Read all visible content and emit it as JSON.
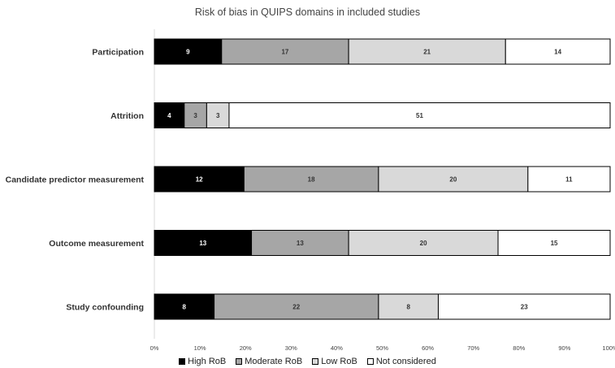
{
  "chart_data": {
    "type": "bar",
    "orientation": "horizontal",
    "stacked": true,
    "percent_scale": true,
    "title": "Risk of bias in QUIPS domains in included studies",
    "categories": [
      "Participation",
      "Attrition",
      "Candidate predictor measurement",
      "Outcome measurement",
      "Study confounding"
    ],
    "series": [
      {
        "name": "High RoB",
        "values": [
          9,
          4,
          12,
          13,
          8
        ],
        "color": "#000000",
        "label_color": "#ffffff"
      },
      {
        "name": "Moderate RoB",
        "values": [
          17,
          3,
          18,
          13,
          22
        ],
        "color": "#a6a6a6",
        "label_color": "#333333"
      },
      {
        "name": "Low RoB",
        "values": [
          21,
          3,
          20,
          20,
          8
        ],
        "color": "#d9d9d9",
        "label_color": "#333333"
      },
      {
        "name": "Not considered",
        "values": [
          14,
          51,
          11,
          15,
          23
        ],
        "color": "#ffffff",
        "label_color": "#333333"
      }
    ],
    "xlim": [
      0,
      100
    ],
    "x_ticks": [
      "0%",
      "10%",
      "20%",
      "30%",
      "40%",
      "50%",
      "60%",
      "70%",
      "80%",
      "90%",
      "100%"
    ],
    "grid": false,
    "legend_position": "bottom"
  }
}
